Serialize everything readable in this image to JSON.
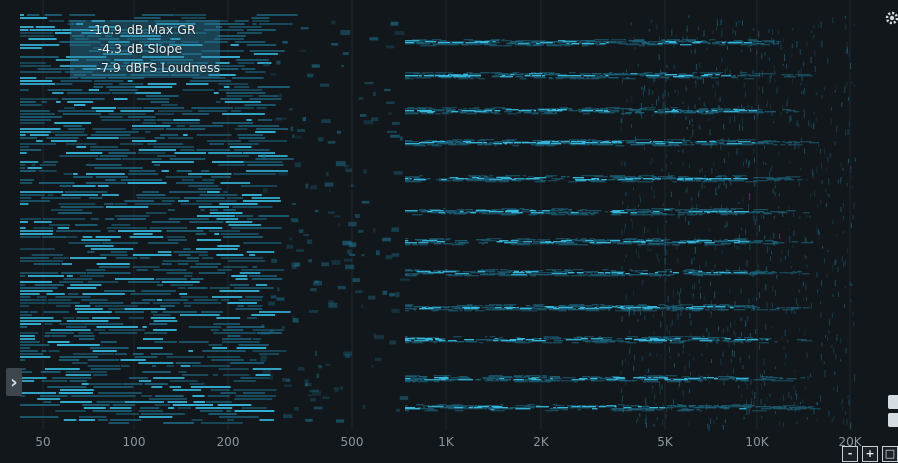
{
  "stats": [
    {
      "value": "-10.9",
      "label": "dB Max GR"
    },
    {
      "value": "-4.3",
      "label": "dB Slope"
    },
    {
      "value": "-7.9",
      "label": "dBFS Loudness"
    }
  ],
  "freq_axis": {
    "ticks": [
      "50",
      "100",
      "200",
      "500",
      "1K",
      "2K",
      "5K",
      "10K",
      "20K"
    ]
  },
  "controls": {
    "expand_glyph": "›",
    "zoom_out_label": "-",
    "zoom_in_label": "+",
    "fit_label": "□",
    "settings_icon": "gear-icon"
  },
  "colors": {
    "background": "#12171b",
    "energy": "#35b8dd",
    "energy_dim": "#1d6a84"
  }
}
